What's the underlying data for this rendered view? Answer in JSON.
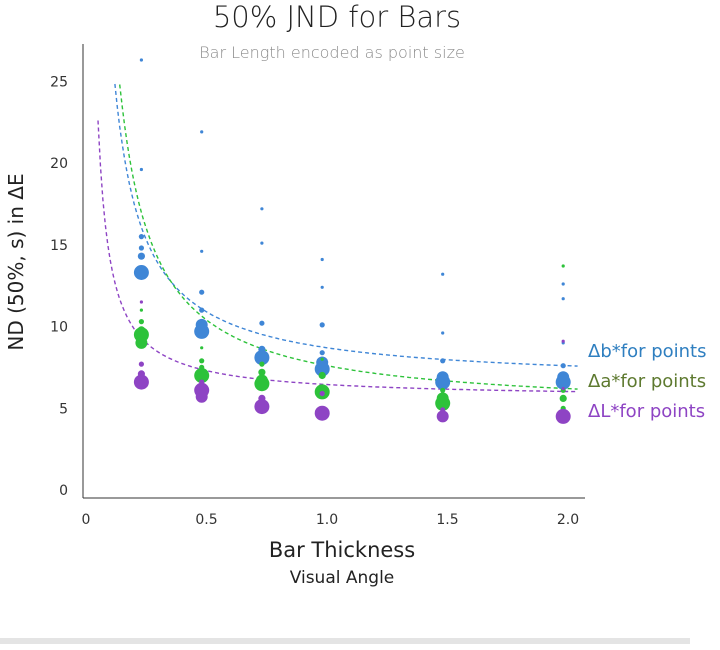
{
  "chart_data": {
    "type": "scatter",
    "title": "50% JND for Bars",
    "subtitle": "Bar Length encoded as point size",
    "xlabel": "Bar Thickness",
    "xlabel_sub": "Visual Angle",
    "ylabel": "ND (50%, s) in ΔE",
    "xlim": [
      0,
      2.1
    ],
    "ylim": [
      0,
      27
    ],
    "x_ticks": [
      "0",
      "0.5",
      "1.0",
      "1.5",
      "2.0"
    ],
    "x_tick_values": [
      0,
      0.5,
      1.0,
      1.5,
      2.0
    ],
    "y_ticks": [
      "0",
      "5",
      "10",
      "15",
      "20",
      "25"
    ],
    "y_tick_values": [
      0,
      5,
      10,
      15,
      20,
      25
    ],
    "series": [
      {
        "name": "Δb*for points",
        "color": "#3f86d6",
        "legend_color": "#2f7fc0",
        "fit": {
          "a": 2.2,
          "b": 6.5
        },
        "points": [
          {
            "x": 0.23,
            "y": 26.3,
            "size": 1
          },
          {
            "x": 0.23,
            "y": 19.6,
            "size": 1
          },
          {
            "x": 0.23,
            "y": 15.5,
            "size": 2
          },
          {
            "x": 0.23,
            "y": 14.8,
            "size": 2
          },
          {
            "x": 0.23,
            "y": 14.3,
            "size": 3
          },
          {
            "x": 0.23,
            "y": 13.3,
            "size": 5
          },
          {
            "x": 0.48,
            "y": 21.9,
            "size": 1
          },
          {
            "x": 0.48,
            "y": 14.6,
            "size": 1
          },
          {
            "x": 0.48,
            "y": 12.1,
            "size": 2
          },
          {
            "x": 0.48,
            "y": 11.0,
            "size": 2
          },
          {
            "x": 0.48,
            "y": 10.1,
            "size": 4
          },
          {
            "x": 0.48,
            "y": 9.7,
            "size": 5
          },
          {
            "x": 0.73,
            "y": 17.2,
            "size": 1
          },
          {
            "x": 0.73,
            "y": 15.1,
            "size": 1
          },
          {
            "x": 0.73,
            "y": 10.2,
            "size": 2
          },
          {
            "x": 0.73,
            "y": 8.6,
            "size": 3
          },
          {
            "x": 0.73,
            "y": 8.1,
            "size": 5
          },
          {
            "x": 0.98,
            "y": 14.1,
            "size": 1
          },
          {
            "x": 0.98,
            "y": 12.4,
            "size": 1
          },
          {
            "x": 0.98,
            "y": 10.1,
            "size": 2
          },
          {
            "x": 0.98,
            "y": 8.4,
            "size": 2
          },
          {
            "x": 0.98,
            "y": 7.8,
            "size": 4
          },
          {
            "x": 0.98,
            "y": 7.4,
            "size": 5
          },
          {
            "x": 1.48,
            "y": 13.2,
            "size": 1
          },
          {
            "x": 1.48,
            "y": 9.6,
            "size": 1
          },
          {
            "x": 1.48,
            "y": 7.9,
            "size": 2
          },
          {
            "x": 1.48,
            "y": 6.9,
            "size": 4
          },
          {
            "x": 1.48,
            "y": 6.6,
            "size": 5
          },
          {
            "x": 1.98,
            "y": 12.6,
            "size": 1
          },
          {
            "x": 1.98,
            "y": 11.7,
            "size": 1
          },
          {
            "x": 1.98,
            "y": 9.0,
            "size": 1
          },
          {
            "x": 1.98,
            "y": 7.6,
            "size": 2
          },
          {
            "x": 1.98,
            "y": 6.9,
            "size": 4
          },
          {
            "x": 1.98,
            "y": 6.6,
            "size": 5
          }
        ]
      },
      {
        "name": "Δa*for points",
        "color": "#2dc23a",
        "legend_color": "#5e7a30",
        "fit": {
          "a": 2.8,
          "b": 4.8
        },
        "points": [
          {
            "x": 0.23,
            "y": 11.0,
            "size": 1
          },
          {
            "x": 0.23,
            "y": 10.3,
            "size": 2
          },
          {
            "x": 0.23,
            "y": 9.8,
            "size": 3
          },
          {
            "x": 0.23,
            "y": 9.5,
            "size": 5
          },
          {
            "x": 0.23,
            "y": 9.0,
            "size": 4
          },
          {
            "x": 0.48,
            "y": 8.7,
            "size": 1
          },
          {
            "x": 0.48,
            "y": 7.9,
            "size": 2
          },
          {
            "x": 0.48,
            "y": 7.5,
            "size": 2
          },
          {
            "x": 0.48,
            "y": 7.0,
            "size": 5
          },
          {
            "x": 0.73,
            "y": 7.7,
            "size": 2
          },
          {
            "x": 0.73,
            "y": 7.2,
            "size": 3
          },
          {
            "x": 0.73,
            "y": 6.7,
            "size": 4
          },
          {
            "x": 0.73,
            "y": 6.5,
            "size": 5
          },
          {
            "x": 0.98,
            "y": 8.0,
            "size": 1
          },
          {
            "x": 0.98,
            "y": 7.0,
            "size": 3
          },
          {
            "x": 0.98,
            "y": 6.0,
            "size": 5
          },
          {
            "x": 1.48,
            "y": 6.1,
            "size": 2
          },
          {
            "x": 1.48,
            "y": 5.6,
            "size": 4
          },
          {
            "x": 1.48,
            "y": 5.3,
            "size": 5
          },
          {
            "x": 1.98,
            "y": 13.7,
            "size": 1
          },
          {
            "x": 1.98,
            "y": 6.1,
            "size": 2
          },
          {
            "x": 1.98,
            "y": 5.6,
            "size": 3
          },
          {
            "x": 1.98,
            "y": 5.0,
            "size": 2
          }
        ]
      },
      {
        "name": "ΔL*for points",
        "color": "#8e44c4",
        "legend_color": "#8e44c4",
        "fit": {
          "a": 0.85,
          "b": 5.6
        },
        "points": [
          {
            "x": 0.23,
            "y": 11.5,
            "size": 1
          },
          {
            "x": 0.23,
            "y": 7.7,
            "size": 2
          },
          {
            "x": 0.23,
            "y": 7.1,
            "size": 3
          },
          {
            "x": 0.23,
            "y": 6.6,
            "size": 5
          },
          {
            "x": 0.48,
            "y": 6.6,
            "size": 2
          },
          {
            "x": 0.48,
            "y": 6.1,
            "size": 5
          },
          {
            "x": 0.48,
            "y": 5.7,
            "size": 4
          },
          {
            "x": 0.73,
            "y": 5.6,
            "size": 3
          },
          {
            "x": 0.73,
            "y": 5.1,
            "size": 5
          },
          {
            "x": 0.98,
            "y": 5.9,
            "size": 2
          },
          {
            "x": 0.98,
            "y": 4.7,
            "size": 5
          },
          {
            "x": 1.48,
            "y": 4.9,
            "size": 2
          },
          {
            "x": 1.48,
            "y": 4.5,
            "size": 4
          },
          {
            "x": 1.98,
            "y": 9.1,
            "size": 1
          },
          {
            "x": 1.98,
            "y": 6.2,
            "size": 1
          },
          {
            "x": 1.98,
            "y": 4.5,
            "size": 5
          }
        ]
      }
    ]
  }
}
